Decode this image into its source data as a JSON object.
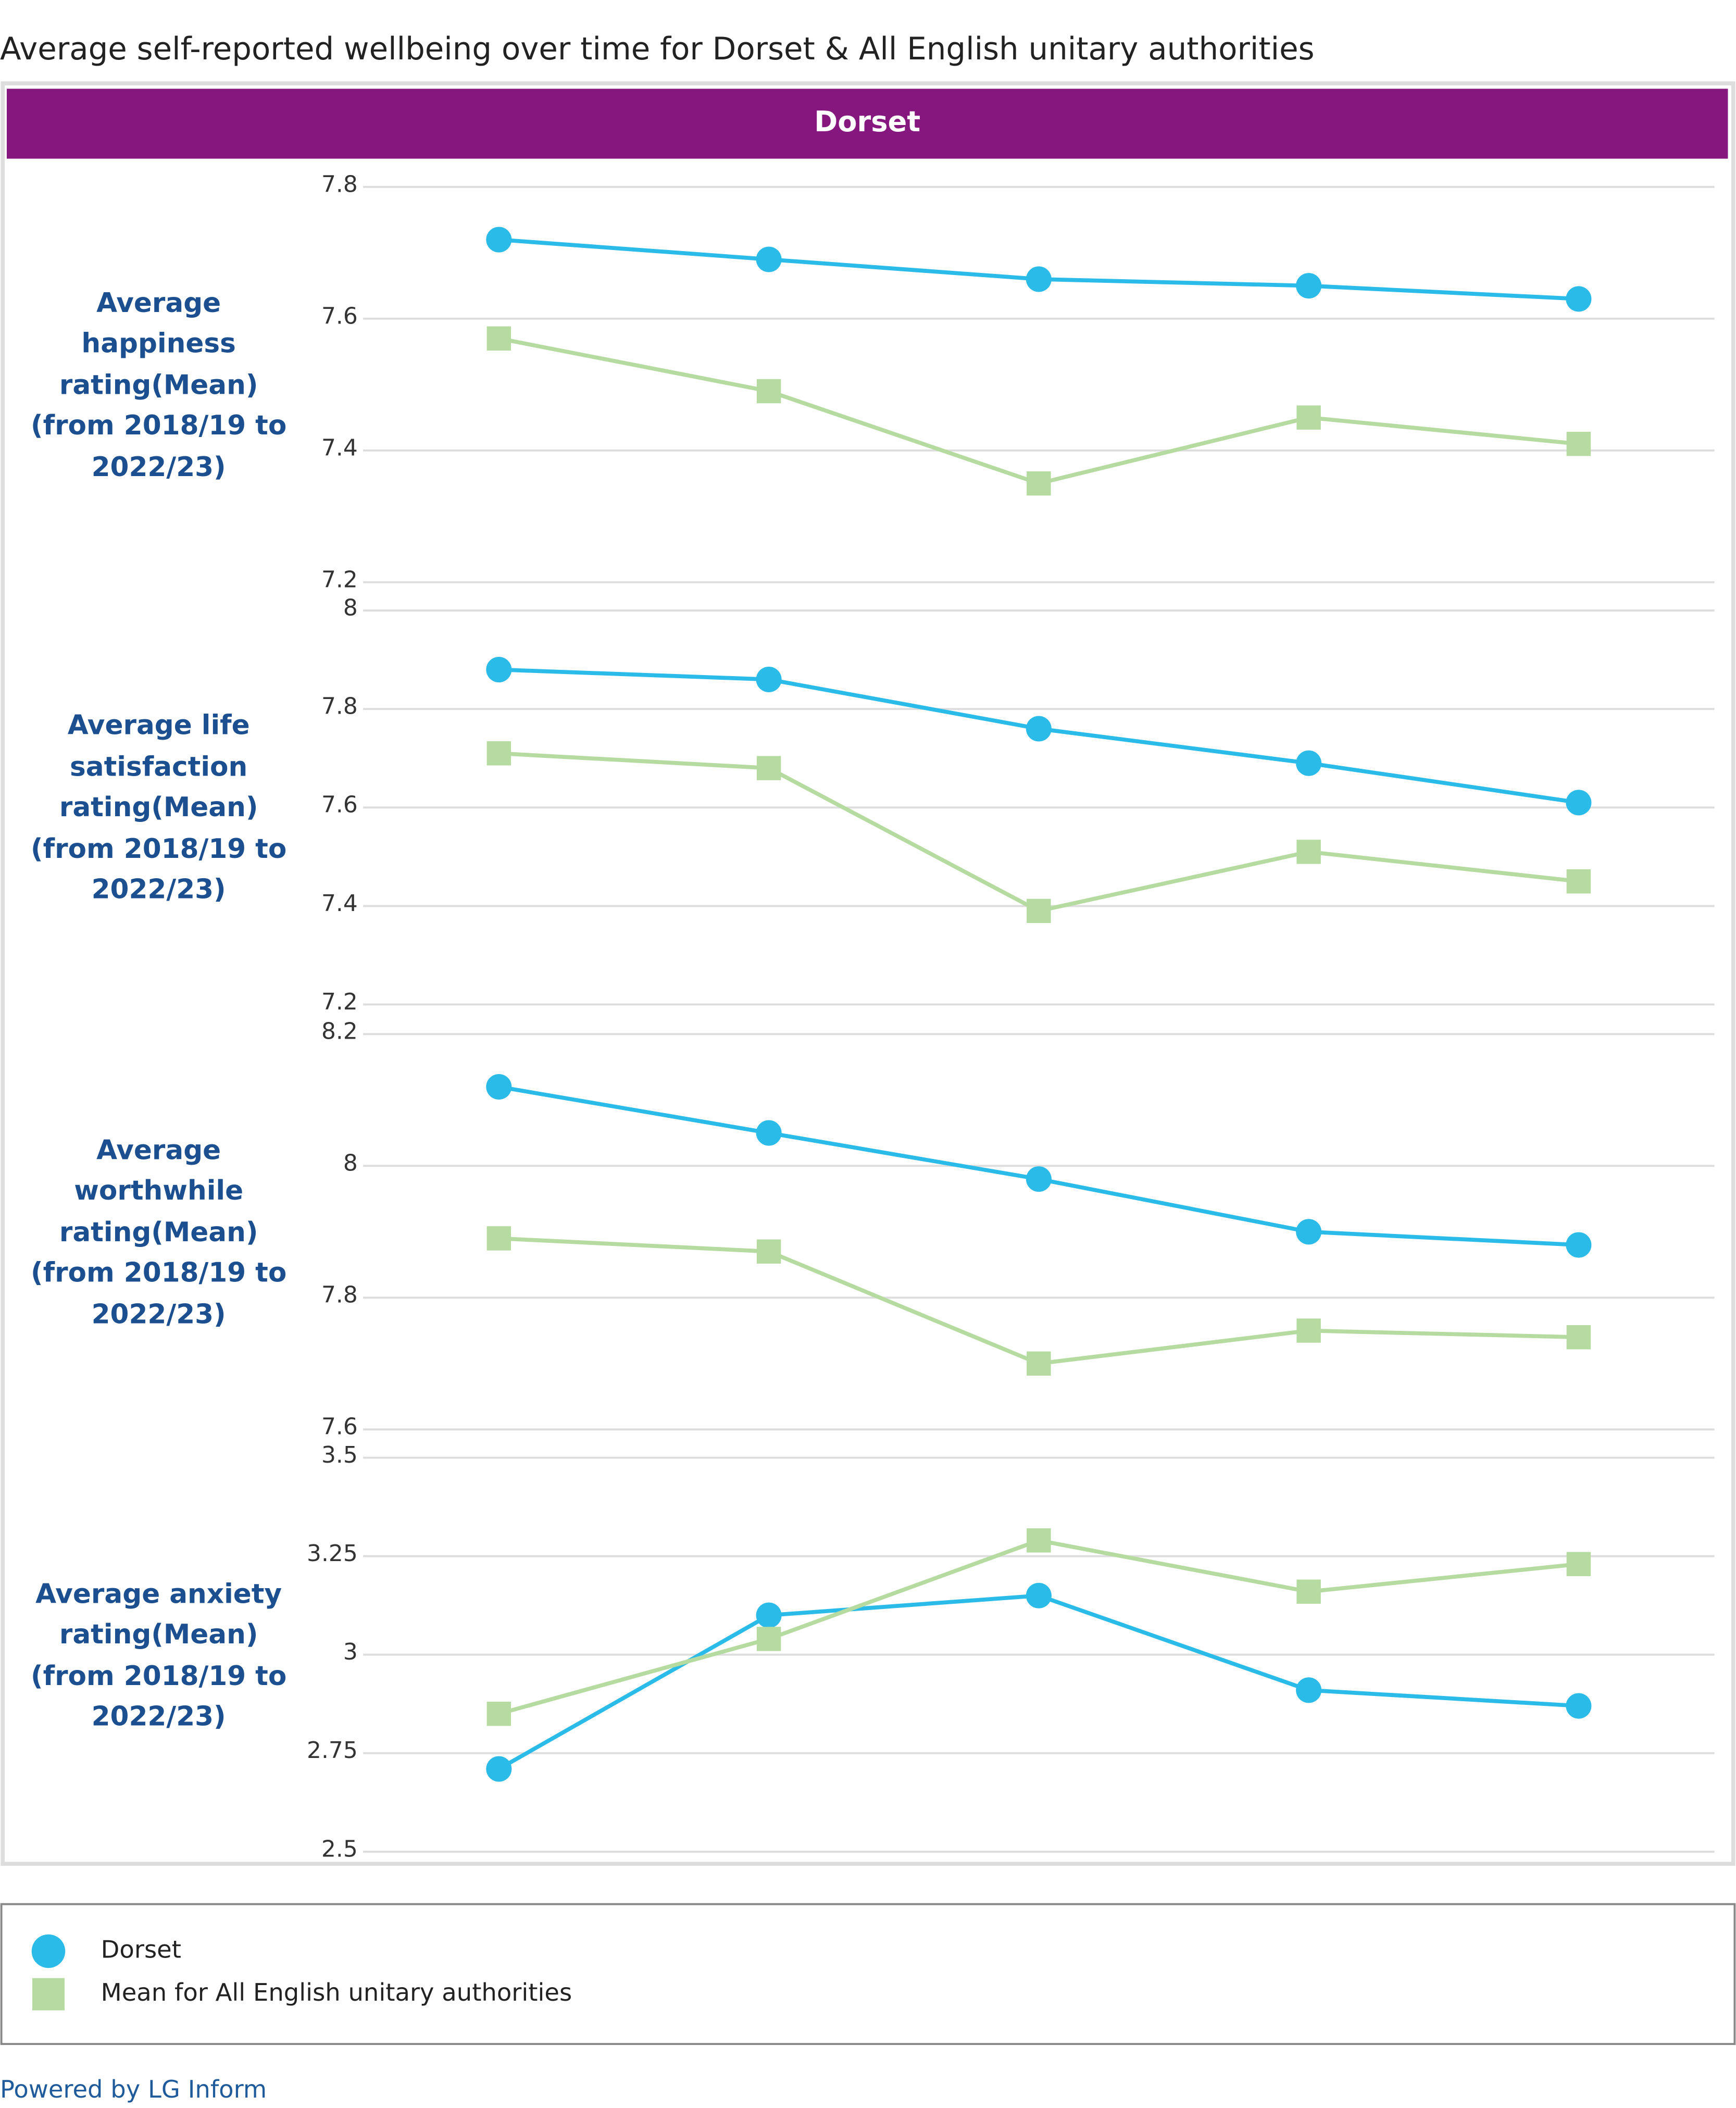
{
  "title": "Average self-reported wellbeing over time for Dorset & All English unitary authorities",
  "panel_title": "Dorset",
  "footer": "Powered by LG Inform",
  "chart_data": [
    {
      "type": "line",
      "title": "Average happiness rating(Mean) (from 2018/19 to 2022/23)",
      "categories": [
        null,
        null,
        null,
        null,
        null
      ],
      "series": [
        {
          "name": "Dorset",
          "color": "#2bbbe8",
          "marker": "circle",
          "values": [
            7.72,
            7.69,
            7.66,
            7.65,
            7.63
          ]
        },
        {
          "name": "Mean for All English unitary authorities",
          "color": "#b5dba0",
          "marker": "square",
          "values": [
            7.57,
            7.49,
            7.35,
            7.45,
            7.41
          ]
        }
      ],
      "ylim": [
        7.2,
        7.8
      ],
      "yticks": [
        7.2,
        7.4,
        7.6,
        7.8
      ],
      "grid": true
    },
    {
      "type": "line",
      "title": "Average life satisfaction rating(Mean) (from 2018/19 to 2022/23)",
      "categories": [
        null,
        null,
        null,
        null,
        null
      ],
      "series": [
        {
          "name": "Dorset",
          "color": "#2bbbe8",
          "marker": "circle",
          "values": [
            7.88,
            7.86,
            7.76,
            7.69,
            7.61
          ]
        },
        {
          "name": "Mean for All English unitary authorities",
          "color": "#b5dba0",
          "marker": "square",
          "values": [
            7.71,
            7.68,
            7.39,
            7.51,
            7.45
          ]
        }
      ],
      "ylim": [
        7.2,
        8
      ],
      "yticks": [
        7.2,
        7.4,
        7.6,
        7.8,
        8
      ],
      "grid": true
    },
    {
      "type": "line",
      "title": "Average worthwhile rating(Mean) (from 2018/19 to 2022/23)",
      "categories": [
        null,
        null,
        null,
        null,
        null
      ],
      "series": [
        {
          "name": "Dorset",
          "color": "#2bbbe8",
          "marker": "circle",
          "values": [
            8.12,
            8.05,
            7.98,
            7.9,
            7.88
          ]
        },
        {
          "name": "Mean for All English unitary authorities",
          "color": "#b5dba0",
          "marker": "square",
          "values": [
            7.89,
            7.87,
            7.7,
            7.75,
            7.74
          ]
        }
      ],
      "ylim": [
        7.6,
        8.2
      ],
      "yticks": [
        7.6,
        7.8,
        8,
        8.2
      ],
      "grid": true
    },
    {
      "type": "line",
      "title": "Average anxiety rating(Mean) (from 2018/19 to 2022/23)",
      "categories": [
        null,
        null,
        null,
        null,
        null
      ],
      "series": [
        {
          "name": "Dorset",
          "color": "#2bbbe8",
          "marker": "circle",
          "values": [
            2.71,
            3.1,
            3.15,
            2.91,
            2.87
          ]
        },
        {
          "name": "Mean for All English unitary authorities",
          "color": "#b5dba0",
          "marker": "square",
          "values": [
            2.85,
            3.04,
            3.29,
            3.16,
            3.23
          ]
        }
      ],
      "ylim": [
        2.5,
        3.5
      ],
      "yticks": [
        2.5,
        2.75,
        3,
        3.25,
        3.5
      ],
      "grid": true
    }
  ]
}
